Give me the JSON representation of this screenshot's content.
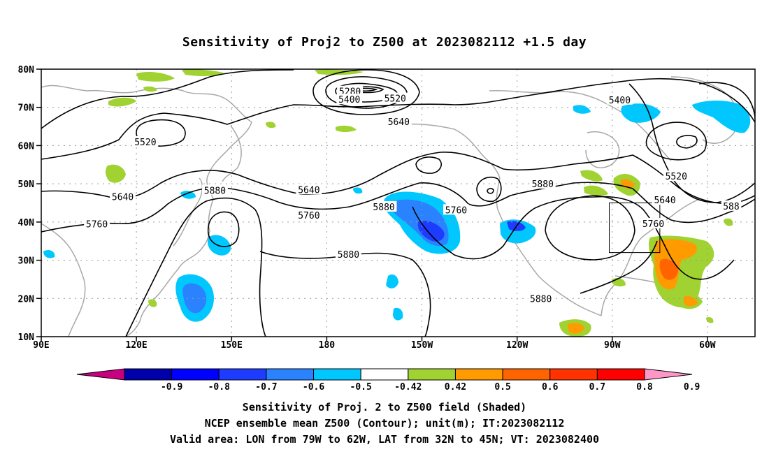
{
  "title": "Sensitivity of Proj2 to Z500 at 2023082112 +1.5 day",
  "lat_labels": [
    "80N",
    "70N",
    "60N",
    "50N",
    "40N",
    "30N",
    "20N",
    "10N"
  ],
  "lon_labels": [
    "90E",
    "120E",
    "150E",
    "180",
    "150W",
    "120W",
    "90W",
    "60W"
  ],
  "contour_labels": [
    {
      "text": "5280",
      "lon": 193.8,
      "lat": 74.2
    },
    {
      "text": "5400",
      "lon": 193.6,
      "lat": 72.1
    },
    {
      "text": "5520",
      "lon": 209.0,
      "lat": 72.4
    },
    {
      "text": "5640",
      "lon": 210.2,
      "lat": 66.3
    },
    {
      "text": "5520",
      "lon": 125.0,
      "lat": 61.0
    },
    {
      "text": "5640",
      "lon": 117.4,
      "lat": 46.6
    },
    {
      "text": "5880",
      "lon": 148.4,
      "lat": 48.3
    },
    {
      "text": "5640",
      "lon": 180.0,
      "lat": 48.5
    },
    {
      "text": "5760",
      "lon": 108.7,
      "lat": 39.5
    },
    {
      "text": "5760",
      "lon": 180.0,
      "lat": 41.8
    },
    {
      "text": "5880",
      "lon": 205.2,
      "lat": 44.0
    },
    {
      "text": "5880",
      "lon": 193.3,
      "lat": 31.6
    },
    {
      "text": "5760",
      "lon": 229.5,
      "lat": 43.2
    },
    {
      "text": "5880",
      "lon": 258.6,
      "lat": 50.0
    },
    {
      "text": "5400",
      "lon": 284.5,
      "lat": 72.0
    },
    {
      "text": "5520",
      "lon": 303.5,
      "lat": 52.0
    },
    {
      "text": "5640",
      "lon": 299.7,
      "lat": 45.8
    },
    {
      "text": "5760",
      "lon": 295.8,
      "lat": 39.6
    },
    {
      "text": "588",
      "lon": 322.0,
      "lat": 44.2
    },
    {
      "text": "5880",
      "lon": 258.0,
      "lat": 20.0
    }
  ],
  "colorbar": {
    "labels": [
      "-0.9",
      "-0.8",
      "-0.7",
      "-0.6",
      "-0.5",
      "-0.42",
      "0.42",
      "0.5",
      "0.6",
      "0.7",
      "0.8",
      "0.9"
    ],
    "colors": [
      "#c8007f",
      "#0000aa",
      "#0000ff",
      "#1e3cff",
      "#2a82ff",
      "#00c8ff",
      "#ffffff",
      "#a0d232",
      "#ff9b00",
      "#ff6400",
      "#ff3200",
      "#ff0000",
      "#ff96c8"
    ]
  },
  "valid_area": {
    "lon_min": -79,
    "lon_max": -62,
    "lat_min": 32,
    "lat_max": 45
  },
  "captions": [
    "Sensitivity of Proj. 2 to Z500 field (Shaded)",
    "NCEP ensemble mean Z500 (Contour); unit(m); IT:2023082112",
    "Valid area: LON from 79W to 62W, LAT from 32N to 45N; VT: 2023082400"
  ]
}
